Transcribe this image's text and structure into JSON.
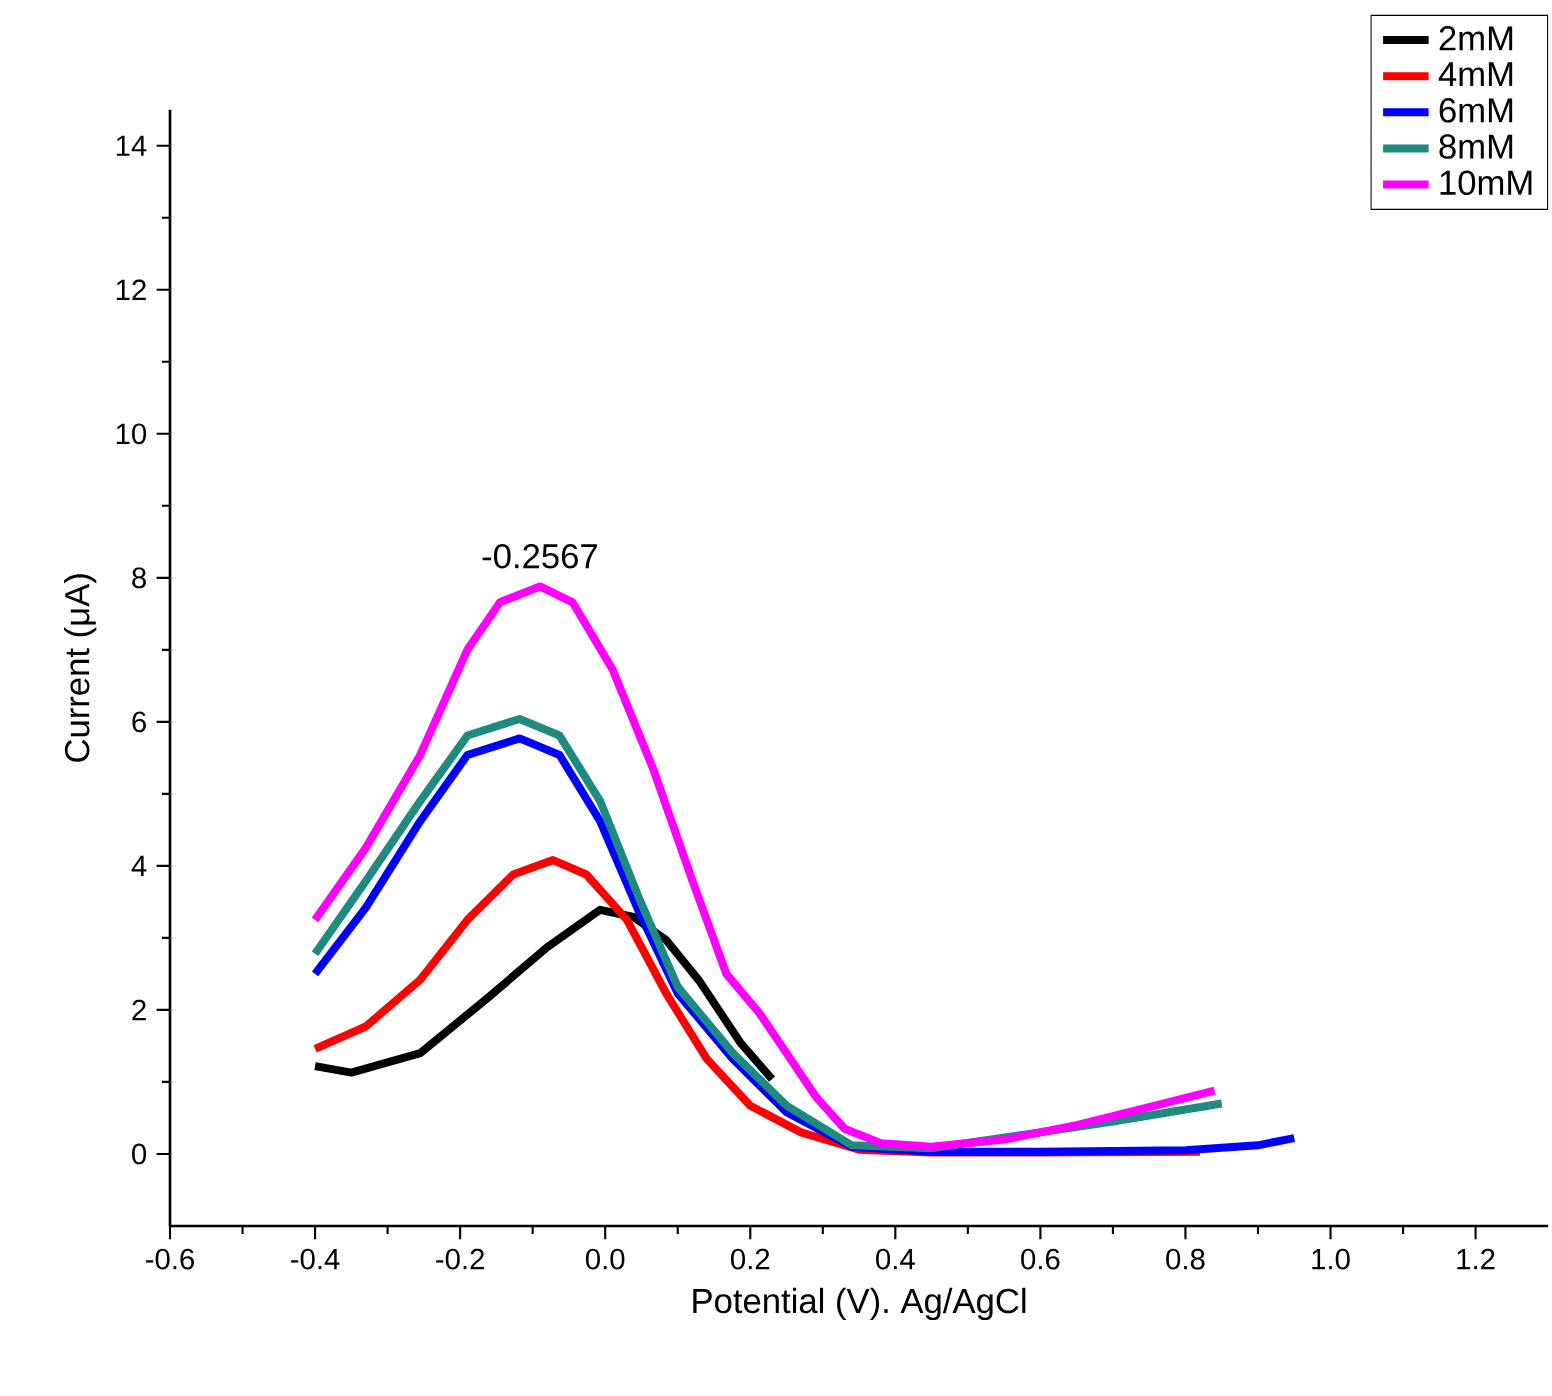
{
  "chart_data": {
    "type": "line",
    "xlabel": "Potential (V). Ag/AgCl",
    "ylabel": "Current (μA)",
    "xlim": [
      -0.6,
      1.3
    ],
    "ylim": [
      -1,
      14.5
    ],
    "xticks": [
      -0.6,
      -0.4,
      -0.2,
      {
        "value": 0,
        "label": "0.0"
      },
      0.2,
      0.4,
      0.6,
      0.8,
      {
        "value": 1,
        "label": "1.0"
      },
      1.2
    ],
    "yticks": [
      0,
      2,
      4,
      6,
      8,
      10,
      12,
      14
    ],
    "legend": "top right",
    "grid": false,
    "line_style": "solid",
    "annotations": [
      {
        "text": "-0.2567",
        "x": -0.09,
        "y": 7.9
      }
    ],
    "series": [
      {
        "name": "2mM",
        "color": "#000000",
        "x": [
          -0.4,
          -0.35,
          -0.255,
          -0.164,
          -0.08,
          -0.007,
          0.039,
          0.084,
          0.13,
          0.186,
          0.23
        ],
        "values": [
          1.22,
          1.13,
          1.4,
          2.15,
          2.87,
          3.39,
          3.29,
          2.97,
          2.4,
          1.55,
          1.04
        ]
      },
      {
        "name": "4mM",
        "color": "#ff0000",
        "x": [
          -0.4,
          -0.33,
          -0.255,
          -0.19,
          -0.127,
          -0.072,
          -0.026,
          0.03,
          0.084,
          0.14,
          0.2,
          0.27,
          0.35,
          0.45,
          0.6,
          0.82
        ],
        "values": [
          1.46,
          1.77,
          2.42,
          3.25,
          3.88,
          4.08,
          3.88,
          3.25,
          2.23,
          1.32,
          0.67,
          0.3,
          0.06,
          0.02,
          0.02,
          0.03
        ]
      },
      {
        "name": "6mM",
        "color": "#0000ff",
        "x": [
          -0.4,
          -0.33,
          -0.255,
          -0.19,
          -0.118,
          -0.063,
          -0.007,
          0.048,
          0.1,
          0.176,
          0.25,
          0.34,
          0.45,
          0.6,
          0.8,
          0.9,
          0.95
        ],
        "values": [
          2.5,
          3.42,
          4.62,
          5.54,
          5.77,
          5.54,
          4.62,
          3.33,
          2.23,
          1.32,
          0.58,
          0.1,
          0.03,
          0.03,
          0.05,
          0.12,
          0.22
        ]
      },
      {
        "name": "8mM",
        "color": "#1f8a80",
        "x": [
          -0.4,
          -0.33,
          -0.255,
          -0.19,
          -0.118,
          -0.063,
          -0.007,
          0.048,
          0.1,
          0.176,
          0.25,
          0.34,
          0.45,
          0.6,
          0.7,
          0.85
        ],
        "values": [
          2.78,
          3.79,
          4.9,
          5.81,
          6.04,
          5.81,
          4.9,
          3.52,
          2.32,
          1.4,
          0.67,
          0.12,
          0.08,
          0.3,
          0.45,
          0.7
        ]
      },
      {
        "name": "10mM",
        "color": "#ff00ff",
        "x": [
          -0.4,
          -0.33,
          -0.255,
          -0.19,
          -0.145,
          -0.09,
          -0.045,
          0.01,
          0.066,
          0.12,
          0.167,
          0.213,
          0.25,
          0.29,
          0.33,
          0.38,
          0.45,
          0.55,
          0.65,
          0.75,
          0.84
        ],
        "values": [
          3.25,
          4.25,
          5.54,
          7.0,
          7.66,
          7.88,
          7.66,
          6.73,
          5.35,
          3.8,
          2.5,
          1.95,
          1.4,
          0.8,
          0.35,
          0.15,
          0.1,
          0.2,
          0.4,
          0.65,
          0.88
        ]
      }
    ]
  }
}
